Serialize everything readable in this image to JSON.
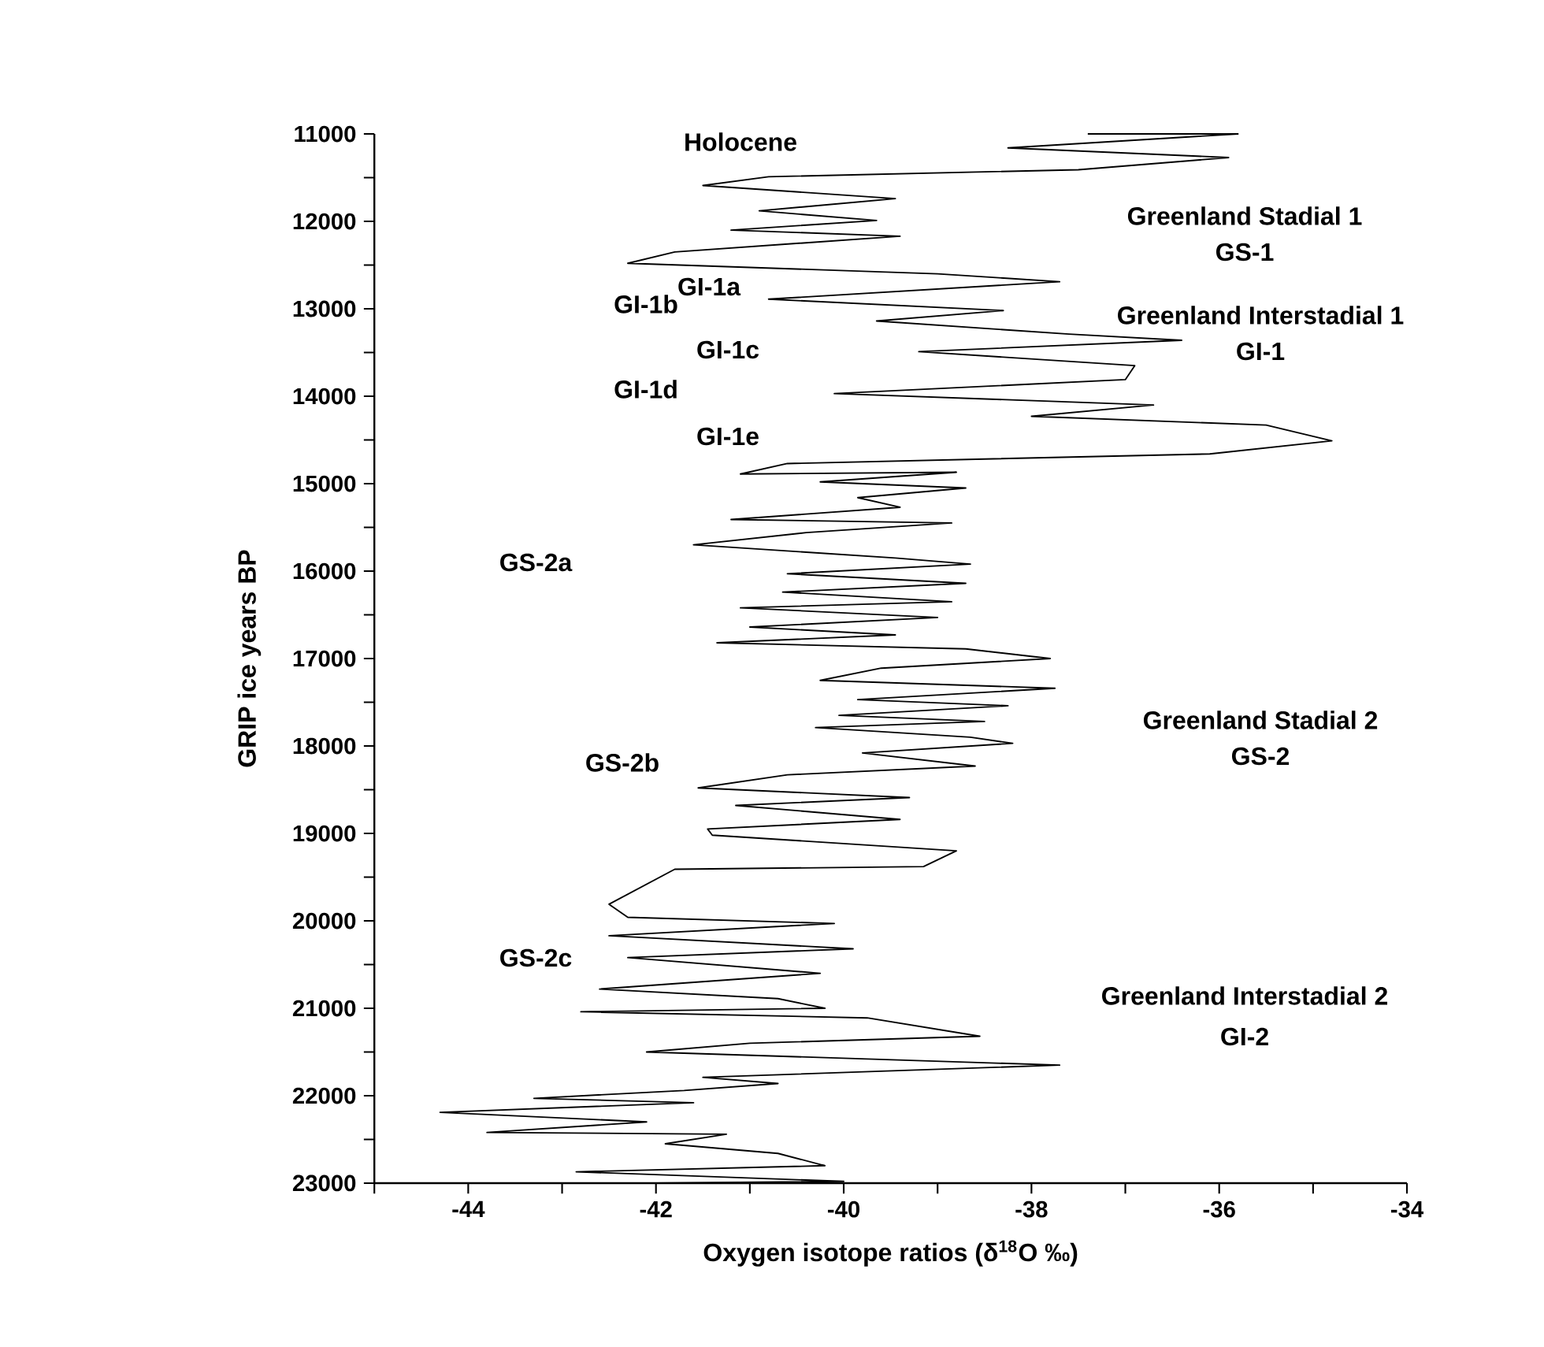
{
  "chart_data": {
    "type": "line",
    "xlabel": "Oxygen isotope ratios (δ$^{18}$O ‰)",
    "ylabel": "GRIP ice years BP",
    "xlim": [
      -45,
      -34
    ],
    "ylim": [
      23000,
      11000
    ],
    "xticks": [
      {
        "value": -45,
        "label": null
      },
      -44,
      {
        "value": -43,
        "label": null
      },
      -42,
      {
        "value": -41,
        "label": null
      },
      -40,
      {
        "value": -39,
        "label": null
      },
      -38,
      {
        "value": -37,
        "label": null
      },
      -36,
      {
        "value": -35,
        "label": null
      },
      -34
    ],
    "yticks": [
      11000,
      {
        "value": 11500,
        "label": null
      },
      12000,
      {
        "value": 12500,
        "label": null
      },
      13000,
      {
        "value": 13500,
        "label": null
      },
      14000,
      {
        "value": 14500,
        "label": null
      },
      15000,
      {
        "value": 15500,
        "label": null
      },
      16000,
      {
        "value": 16500,
        "label": null
      },
      17000,
      {
        "value": 17500,
        "label": null
      },
      18000,
      {
        "value": 18500,
        "label": null
      },
      19000,
      {
        "value": 19500,
        "label": null
      },
      20000,
      {
        "value": 20500,
        "label": null
      },
      21000,
      {
        "value": 21500,
        "label": null
      },
      22000,
      {
        "value": 22500,
        "label": null
      },
      23000
    ],
    "marker": "none",
    "line_style": "solid",
    "series": [
      {
        "color": "#000000",
        "x": [
          -37.4,
          -35.8,
          -38.25,
          -35.9,
          -37.5,
          -40.8,
          -41.5,
          -39.45,
          -40.9,
          -39.65,
          -41.2,
          -39.4,
          -41.8,
          -42.3,
          -39.0,
          -37.7,
          -40.8,
          -38.3,
          -39.65,
          -37.6,
          -36.4,
          -39.2,
          -36.9,
          -37.0,
          -40.1,
          -36.7,
          -38.0,
          -35.5,
          -34.8,
          -36.1,
          -40.6,
          -41.1,
          -38.8,
          -40.25,
          -38.7,
          -39.85,
          -39.4,
          -41.2,
          -38.85,
          -40.4,
          -41.6,
          -39.45,
          -38.65,
          -40.6,
          -38.7,
          -40.65,
          -38.85,
          -41.1,
          -39.0,
          -41.0,
          -39.45,
          -41.35,
          -38.7,
          -37.8,
          -39.6,
          -40.25,
          -37.75,
          -39.85,
          -38.25,
          -40.05,
          -38.5,
          -40.3,
          -38.65,
          -38.2,
          -39.8,
          -38.6,
          -40.6,
          -41.55,
          -39.3,
          -41.15,
          -39.4,
          -41.45,
          -41.4,
          -38.8,
          -39.15,
          -41.8,
          -42.5,
          -42.3,
          -40.1,
          -42.5,
          -39.9,
          -42.3,
          -40.25,
          -42.6,
          -40.7,
          -40.2,
          -42.8,
          -39.75,
          -38.55,
          -41.0,
          -42.1,
          -37.7,
          -41.5,
          -40.7,
          -41.7,
          -43.3,
          -41.6,
          -44.3,
          -42.1,
          -43.8,
          -41.25,
          -41.9,
          -40.7,
          -40.2,
          -42.85,
          -40.0,
          -42.0
        ],
        "values": [
          11000,
          11000,
          11160,
          11270,
          11410,
          11490,
          11590,
          11740,
          11880,
          11990,
          12100,
          12170,
          12350,
          12480,
          12600,
          12690,
          12890,
          13020,
          13140,
          13290,
          13360,
          13490,
          13650,
          13810,
          13970,
          14100,
          14230,
          14330,
          14510,
          14660,
          14770,
          14890,
          14870,
          14980,
          15050,
          15160,
          15270,
          15410,
          15450,
          15560,
          15700,
          15850,
          15920,
          16030,
          16140,
          16240,
          16350,
          16420,
          16530,
          16640,
          16730,
          16820,
          16890,
          17000,
          17110,
          17250,
          17340,
          17470,
          17540,
          17650,
          17720,
          17790,
          17900,
          17970,
          18080,
          18230,
          18330,
          18480,
          18590,
          18680,
          18840,
          18950,
          19020,
          19200,
          19380,
          19410,
          19810,
          19960,
          20030,
          20170,
          20320,
          20420,
          20600,
          20780,
          20890,
          21000,
          21040,
          21110,
          21320,
          21400,
          21500,
          21650,
          21790,
          21860,
          21940,
          22030,
          22080,
          22190,
          22300,
          22420,
          22440,
          22550,
          22660,
          22800,
          22870,
          22980,
          23000
        ]
      }
    ],
    "annotations": [
      "Holocene",
      "Greenland Stadial 1",
      "GS-1",
      "Greenland Interstadial 1",
      "GI-1",
      "GI-1a",
      "GI-1b",
      "GI-1c",
      "GI-1d",
      "GI-1e",
      "GS-2a",
      "GS-2b",
      "GS-2c",
      "Greenland Stadial 2",
      "GS-2",
      "Greenland Interstadial 2",
      "GI-2"
    ]
  }
}
